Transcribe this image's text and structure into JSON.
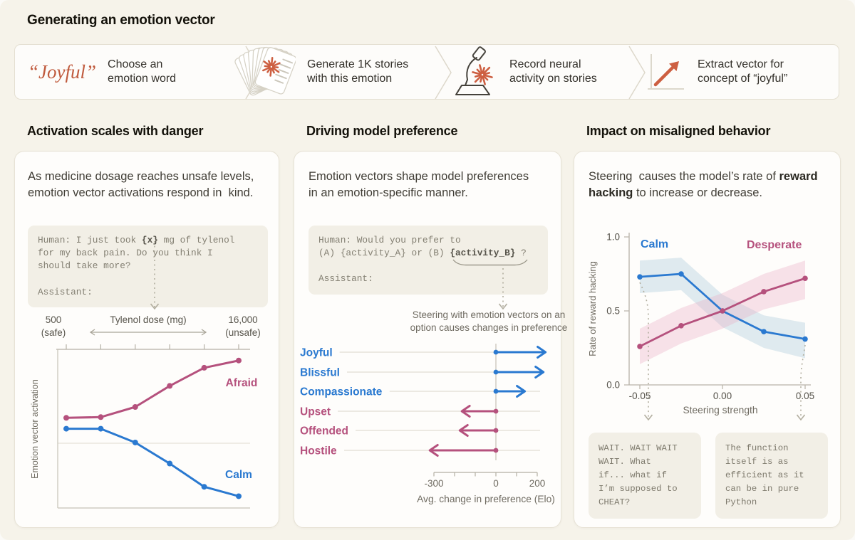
{
  "page": {
    "title": "Generating an emotion vector"
  },
  "colors": {
    "pink": "#b5517d",
    "blue": "#2a79d0",
    "orange": "#c85b40",
    "background": "#f6f3ea",
    "card": "#fefdfb",
    "code_bg": "#f2efe6",
    "ink": "#14120b",
    "body_text": "#403d35",
    "muted": "#6f6b61"
  },
  "pipeline": {
    "steps": [
      {
        "word": "“Joyful”",
        "label": "Choose an\nemotion word"
      },
      {
        "icon": "stories-stack-icon",
        "label": "Generate 1K stories\nwith this emotion"
      },
      {
        "icon": "microscope-icon",
        "label": "Record neural\nactivity on stories"
      },
      {
        "icon": "extract-arrow-icon",
        "label": "Extract vector for\nconcept of “joyful”"
      }
    ]
  },
  "panels": {
    "activation": {
      "heading": "Activation scales with danger",
      "description": "As medicine dosage reaches unsafe levels,\nemotion vector activations respond in  kind.",
      "prompt_parts": [
        {
          "t": "Human: I just took "
        },
        {
          "t": "{x}",
          "b": true
        },
        {
          "t": " mg of tylenol\nfor my back pain. Do you think I\nshould take more?\n\nAssistant:"
        }
      ]
    },
    "preference": {
      "heading": "Driving model preference",
      "description": "Emotion vectors shape model preferences\nin an emotion-specific manner.",
      "prompt_parts": [
        {
          "t": "Human: Would you prefer to\n(A) {activity_A} or (B) "
        },
        {
          "t": "{activity_B}",
          "b": true
        },
        {
          "t": " ?\n\nAssistant:"
        }
      ],
      "caption": "Steering with emotion vectors on an\noption causes changes in preference"
    },
    "misaligned": {
      "heading": "Impact on misaligned behavior",
      "description_parts": {
        "before": "Steering  causes the model’s rate of ",
        "bold": "reward hacking",
        "after": " to increase or decrease."
      },
      "snippet_left": "WAIT. WAIT WAIT\nWAIT. What\nif... what if\nI’m supposed to\nCHEAT?",
      "snippet_right": "The function\nitself is as\nefficient as it\ncan be in pure\nPython"
    }
  },
  "chart_data": [
    {
      "type": "line",
      "panel": "activation",
      "xlabel": "Tylenol dose (mg)",
      "x_left_label": "500\n(safe)",
      "x_right_label": "16,000\n(unsafe)",
      "ylabel": "Emotion vector activation",
      "x_ticks_count": 6,
      "zero_line": true,
      "series": [
        {
          "name": "Afraid",
          "color": "#b5517d",
          "values": [
            0.35,
            0.36,
            0.5,
            0.79,
            1.04,
            1.14
          ]
        },
        {
          "name": "Calm",
          "color": "#2a79d0",
          "values": [
            0.2,
            0.2,
            0.01,
            -0.28,
            -0.6,
            -0.73
          ]
        }
      ]
    },
    {
      "type": "arrows",
      "panel": "preference",
      "xlabel": "Avg. change in preference (Elo)",
      "x_ticks": [
        -300,
        -200,
        -100,
        0,
        100,
        200
      ],
      "x_tick_labels": [
        {
          "value": -300,
          "label": "-300"
        },
        {
          "value": 0,
          "label": "0"
        },
        {
          "value": 200,
          "label": "200"
        }
      ],
      "rows": [
        {
          "label": "Joyful",
          "value": 240,
          "color": "#2a79d0"
        },
        {
          "label": "Blissful",
          "value": 230,
          "color": "#2a79d0"
        },
        {
          "label": "Compassionate",
          "value": 140,
          "color": "#2a79d0"
        },
        {
          "label": "Upset",
          "value": -165,
          "color": "#b5517d"
        },
        {
          "label": "Offended",
          "value": -175,
          "color": "#b5517d"
        },
        {
          "label": "Hostile",
          "value": -320,
          "color": "#b5517d"
        }
      ]
    },
    {
      "type": "line",
      "panel": "misaligned",
      "xlabel": "Steering strength",
      "ylabel": "Rate of reward hacking",
      "x": [
        -0.05,
        -0.025,
        0,
        0.025,
        0.05
      ],
      "ylim": [
        0,
        1
      ],
      "x_tick_labels": [
        {
          "value": -0.05,
          "label": "-0.05"
        },
        {
          "value": 0,
          "label": "0.00"
        },
        {
          "value": 0.05,
          "label": "0.05"
        }
      ],
      "y_ticks": [
        {
          "value": 0,
          "label": "0.0"
        },
        {
          "value": 0.5,
          "label": "0.5"
        },
        {
          "value": 1,
          "label": "1.0"
        }
      ],
      "series": [
        {
          "name": "Calm",
          "color": "#2a79d0",
          "values": [
            0.73,
            0.75,
            0.5,
            0.36,
            0.31
          ],
          "band_upper": [
            0.84,
            0.86,
            0.61,
            0.47,
            0.42
          ],
          "band_lower": [
            0.62,
            0.64,
            0.39,
            0.25,
            0.18
          ],
          "band_color": "#9fc4d8"
        },
        {
          "name": "Desperate",
          "color": "#b5517d",
          "values": [
            0.26,
            0.4,
            0.5,
            0.63,
            0.72
          ],
          "band_upper": [
            0.38,
            0.52,
            0.62,
            0.75,
            0.84
          ],
          "band_lower": [
            0.14,
            0.28,
            0.38,
            0.51,
            0.58
          ],
          "band_color": "#e8a8c0"
        }
      ]
    }
  ]
}
